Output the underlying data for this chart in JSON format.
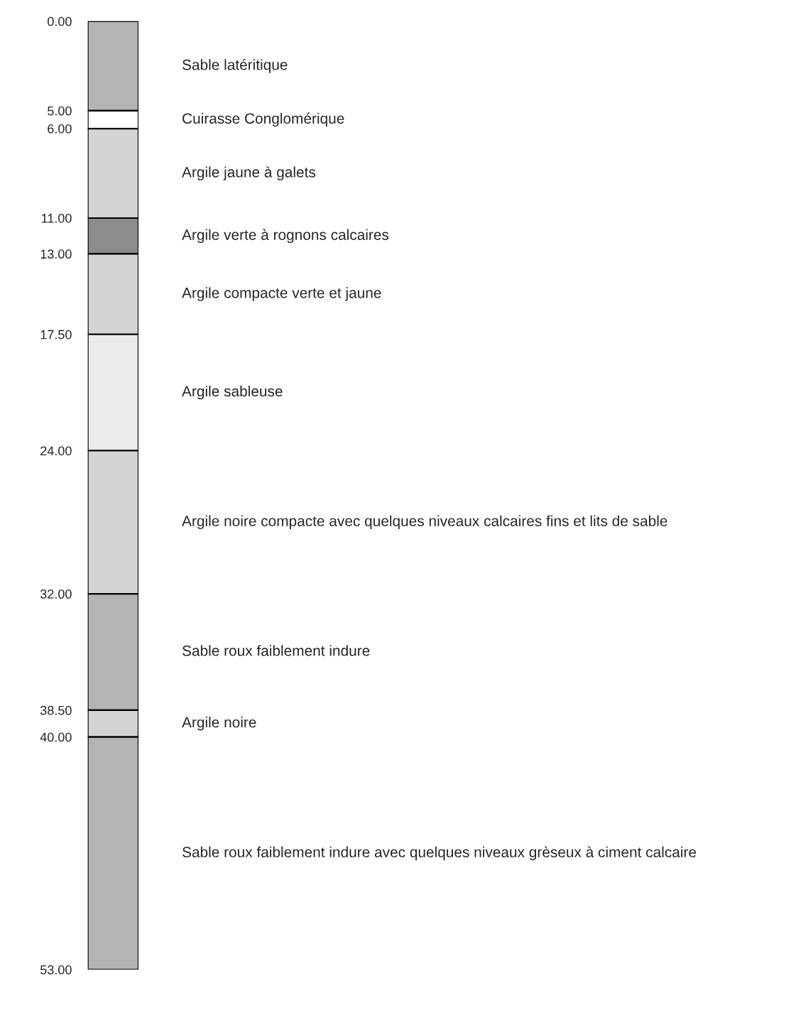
{
  "chart_data": {
    "type": "bar",
    "stacked": true,
    "categories": [
      null
    ],
    "series": [
      {
        "name": "Sable latéritique",
        "color": "#b4b4b4",
        "values": [
          5
        ]
      },
      {
        "name": "Cuirasse Conglomérique",
        "color": "#ffffff",
        "values": [
          1
        ]
      },
      {
        "name": "Argile jaune à galets",
        "color": "#d4d4d4",
        "values": [
          5
        ]
      },
      {
        "name": "Argile verte à rognons calcaires",
        "color": "#8c8c8c",
        "values": [
          2
        ]
      },
      {
        "name": "Argile compacte verte et jaune",
        "color": "#d4d4d4",
        "values": [
          4.5
        ]
      },
      {
        "name": "Argile sableuse",
        "color": "#ebebeb",
        "values": [
          6.5
        ]
      },
      {
        "name": "Argile noire compacte avec quelques niveaux calcaires fins et lits de sable",
        "color": "#d4d4d4",
        "values": [
          8
        ]
      },
      {
        "name": "Sable roux faiblement indure",
        "color": "#b4b4b4",
        "values": [
          6.5
        ]
      },
      {
        "name": "Argile noire",
        "color": "#d4d4d4",
        "values": [
          1.5
        ]
      },
      {
        "name": "Sable roux faiblement indure avec quelques niveaux grèseux à ciment calcaire",
        "color": "#b4b4b4",
        "values": [
          13
        ]
      }
    ],
    "ylim": [
      53,
      0
    ],
    "yticks": [
      {
        "value": 0,
        "label": "0.00"
      },
      {
        "value": 5,
        "label": "5.00"
      },
      {
        "value": 6,
        "label": "6.00"
      },
      {
        "value": 11,
        "label": "11.00"
      },
      {
        "value": 13,
        "label": "13.00"
      },
      {
        "value": 17.5,
        "label": "17.50"
      },
      {
        "value": 24,
        "label": "24.00"
      },
      {
        "value": 32,
        "label": "32.00"
      },
      {
        "value": 38.5,
        "label": "38.50"
      },
      {
        "value": 40,
        "label": "40.00"
      },
      {
        "value": 53,
        "label": "53.00"
      }
    ],
    "tick_labels": "y",
    "grid": false,
    "legend": false
  }
}
